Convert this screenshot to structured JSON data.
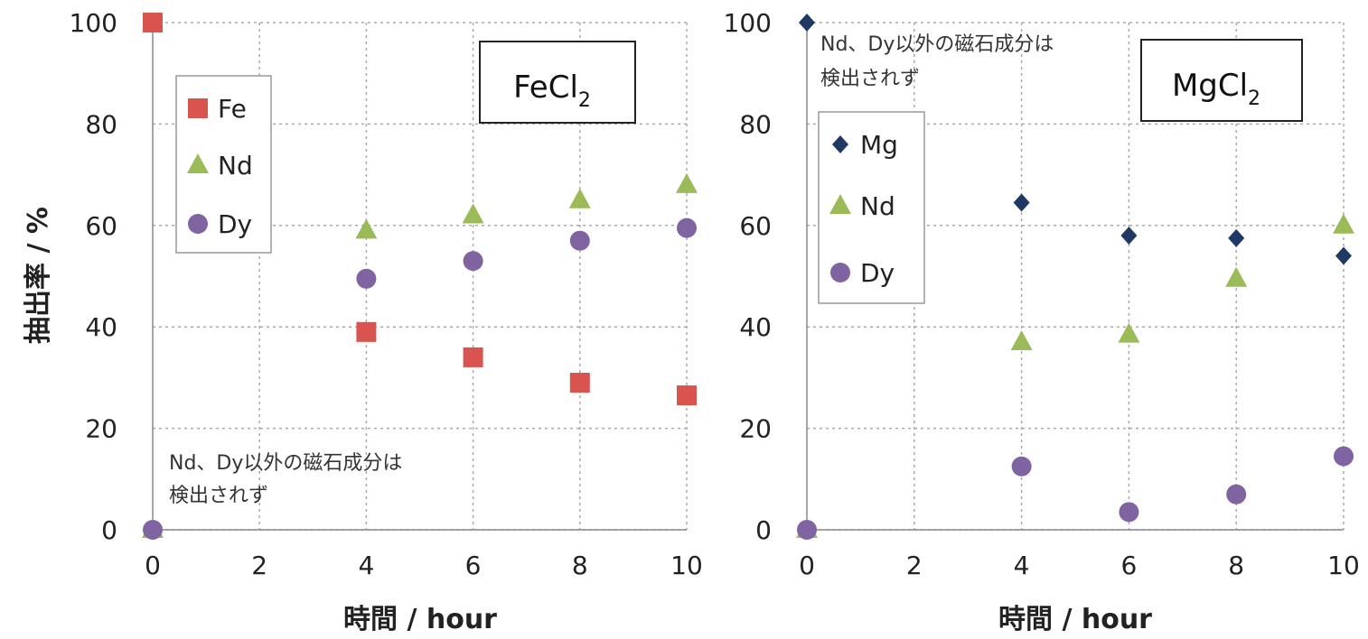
{
  "ylabel": "抽出率 / %",
  "colors": {
    "Fe": "#d9534f",
    "Nd": "#9bbb59",
    "Dy": "#8064a2",
    "Mg": "#1f3864"
  },
  "chart_data": [
    {
      "type": "scatter",
      "box_label": {
        "main": "FeCl",
        "sub": "2"
      },
      "xlabel": "時間 / hour",
      "ylabel": "抽出率 / %",
      "xlim": [
        0,
        10
      ],
      "ylim": [
        0,
        100
      ],
      "xticks": [
        "0",
        "2",
        "4",
        "6",
        "8",
        "10"
      ],
      "yticks": [
        "0",
        "20",
        "40",
        "60",
        "80",
        "100"
      ],
      "grid": true,
      "legend_position": "top-left",
      "note": [
        "Nd、Dy以外の磁石成分は",
        "検出されず"
      ],
      "note_position": "bottom-left",
      "series": [
        {
          "name": "Fe",
          "marker": "square",
          "x": [
            0,
            4,
            6,
            8,
            10
          ],
          "y": [
            100,
            39,
            34,
            29,
            26.5
          ]
        },
        {
          "name": "Nd",
          "marker": "triangle",
          "x": [
            0,
            4,
            6,
            8,
            10
          ],
          "y": [
            0,
            59,
            62,
            65,
            68
          ]
        },
        {
          "name": "Dy",
          "marker": "circle",
          "x": [
            0,
            4,
            6,
            8,
            10
          ],
          "y": [
            0,
            49.5,
            53,
            57,
            59.5
          ]
        }
      ]
    },
    {
      "type": "scatter",
      "box_label": {
        "main": "MgCl",
        "sub": "2"
      },
      "xlabel": "時間 / hour",
      "ylabel": "",
      "xlim": [
        0,
        10
      ],
      "ylim": [
        0,
        100
      ],
      "xticks": [
        "0",
        "2",
        "4",
        "6",
        "8",
        "10"
      ],
      "yticks": [
        "0",
        "20",
        "40",
        "60",
        "80",
        "100"
      ],
      "grid": true,
      "legend_position": "left",
      "note": [
        "Nd、Dy以外の磁石成分は",
        "検出されず"
      ],
      "note_position": "top-left",
      "series": [
        {
          "name": "Mg",
          "marker": "diamond",
          "x": [
            0,
            4,
            6,
            8,
            10
          ],
          "y": [
            100,
            64.5,
            58,
            57.5,
            54
          ]
        },
        {
          "name": "Nd",
          "marker": "triangle",
          "x": [
            0,
            4,
            6,
            8,
            10
          ],
          "y": [
            0,
            37,
            38.5,
            49.5,
            60
          ]
        },
        {
          "name": "Dy",
          "marker": "circle",
          "x": [
            0,
            4,
            6,
            8,
            10
          ],
          "y": [
            0,
            12.5,
            3.5,
            7,
            14.5
          ]
        }
      ]
    }
  ]
}
